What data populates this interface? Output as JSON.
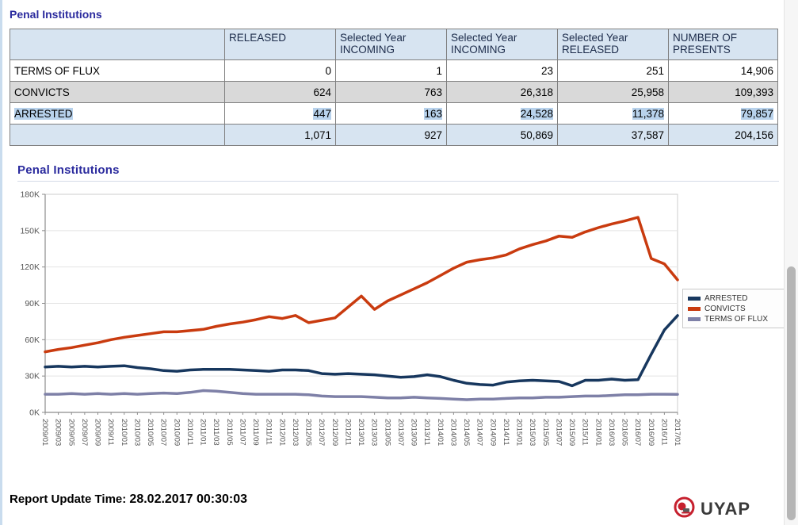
{
  "page": {
    "table_title": "Penal Institutions",
    "chart_section_title": "Penal Institutions",
    "footer_label": "Report Update Time:",
    "footer_datetime": "28.02.2017 00:30:03",
    "logo_text": "UYAP"
  },
  "colors": {
    "title_accent": "#2b2b9e",
    "table_header_bg": "#d7e4f1",
    "table_gray_row_bg": "#d9d9d9",
    "table_total_row_bg": "#d7e4f1",
    "selection_highlight": "#b8d2ec",
    "arrested_line": "#17375e",
    "convicts_line": "#c93b0f",
    "terms_of_flux_line": "#7e80a7"
  },
  "table": {
    "columns": [
      "",
      "RELEASED",
      "Selected Year INCOMING",
      "Selected Year INCOMING",
      "Selected Year RELEASED",
      "NUMBER OF PRESENTS"
    ],
    "rows": [
      {
        "label": "TERMS OF FLUX",
        "values": [
          "0",
          "1",
          "23",
          "251",
          "14,906"
        ],
        "variant": "white"
      },
      {
        "label": "CONVICTS",
        "values": [
          "624",
          "763",
          "26,318",
          "25,958",
          "109,393"
        ],
        "variant": "gray"
      },
      {
        "label": "ARRESTED",
        "values": [
          "447",
          "163",
          "24,528",
          "11,378",
          "79,857"
        ],
        "variant": "highlight"
      },
      {
        "label": "",
        "values": [
          "1,071",
          "927",
          "50,869",
          "37,587",
          "204,156"
        ],
        "variant": "total"
      }
    ]
  },
  "chart_data": {
    "type": "line",
    "title": "Penal Institutions",
    "unit": "thousands of persons",
    "ylim": [
      0,
      180
    ],
    "yticks": [
      0,
      30,
      60,
      90,
      120,
      150,
      180
    ],
    "ytick_labels": [
      "0K",
      "30K",
      "60K",
      "90K",
      "120K",
      "150K",
      "180K"
    ],
    "grid": true,
    "legend_position": "right",
    "x": [
      "2009/01",
      "2009/03",
      "2009/05",
      "2009/07",
      "2009/09",
      "2009/11",
      "2010/01",
      "2010/03",
      "2010/05",
      "2010/07",
      "2010/09",
      "2010/11",
      "2011/01",
      "2011/03",
      "2011/05",
      "2011/07",
      "2011/09",
      "2011/11",
      "2012/01",
      "2012/03",
      "2012/05",
      "2012/07",
      "2012/09",
      "2012/11",
      "2013/01",
      "2013/03",
      "2013/05",
      "2013/07",
      "2013/09",
      "2013/11",
      "2014/01",
      "2014/03",
      "2014/05",
      "2014/07",
      "2014/09",
      "2014/11",
      "2015/01",
      "2015/03",
      "2015/05",
      "2015/07",
      "2015/09",
      "2015/11",
      "2016/01",
      "2016/03",
      "2016/05",
      "2016/07",
      "2016/09",
      "2016/11",
      "2017/01"
    ],
    "series": [
      {
        "name": "ARRESTED",
        "color": "#17375e",
        "values": [
          37.5,
          38,
          37.5,
          38,
          37.5,
          38,
          38.5,
          37,
          36,
          34.5,
          34,
          35,
          35.5,
          35.5,
          35.5,
          35,
          34.5,
          34,
          35,
          35,
          34.5,
          32,
          31.5,
          32,
          31.5,
          31,
          30,
          29,
          29.5,
          31,
          29.5,
          26.5,
          24,
          23,
          22.5,
          25,
          26,
          26.5,
          26,
          25.5,
          22,
          26.5,
          26.5,
          27.5,
          26.5,
          27,
          48,
          68,
          79.9
        ]
      },
      {
        "name": "CONVICTS",
        "color": "#c93b0f",
        "values": [
          50,
          52,
          53.5,
          55.5,
          57.5,
          60,
          62,
          63.5,
          65,
          66.5,
          66.5,
          67.5,
          68.5,
          71,
          73,
          74.5,
          76.5,
          79,
          77.5,
          80,
          74,
          76,
          78,
          87,
          96,
          85,
          92,
          97,
          102,
          107,
          113,
          119,
          124,
          126,
          127.5,
          130,
          135,
          138.5,
          141.5,
          145.5,
          144.5,
          149,
          152.5,
          155.5,
          158,
          161,
          127,
          122.5,
          109.4
        ]
      },
      {
        "name": "TERMS OF FLUX",
        "color": "#7e80a7",
        "values": [
          15,
          15,
          15.5,
          15,
          15.5,
          15,
          15.5,
          15,
          15.5,
          16,
          15.5,
          16.5,
          18,
          17.5,
          16.5,
          15.5,
          15,
          15,
          15,
          15,
          14.5,
          13.5,
          13,
          13,
          13,
          12.5,
          12,
          12,
          12.5,
          12,
          11.5,
          11,
          10.5,
          11,
          11,
          11.5,
          12,
          12,
          12.5,
          12.5,
          13,
          13.5,
          13.5,
          14,
          14.5,
          14.5,
          15,
          15,
          14.9
        ]
      }
    ]
  }
}
